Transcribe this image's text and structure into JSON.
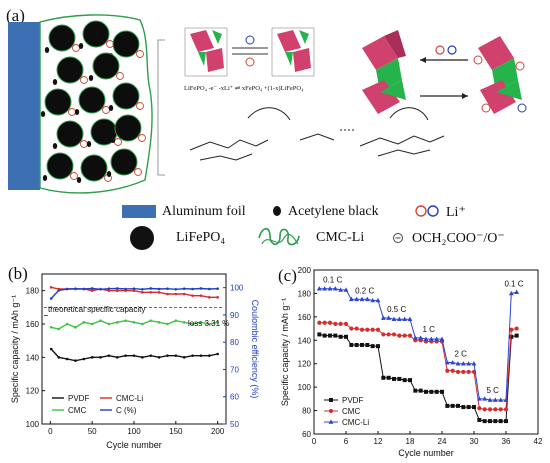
{
  "panel_a": {
    "label": "(a)",
    "equation": "LiFePO₄ -e⁻ -xLi⁺ ⇌ xFePO₄ +(1-x)LiFePO₄",
    "legend": {
      "aluminum_foil": "Aluminum foil",
      "acetylene_black": "Acetylene black",
      "li_ion": "Li⁺",
      "lifepo4": "LiFePO₄",
      "cmc_li": "CMC-Li",
      "carboxylate": "OCH₂COO⁻/O⁻"
    },
    "colors": {
      "foil": "#3d6fb3",
      "binder": "#2e9e4a",
      "octahedron": "#d0416e",
      "green_block": "#27b34b",
      "ion": "#d4453a"
    }
  },
  "panel_b": {
    "label": "(b)",
    "annotation_theory": "theoretical specific capacity",
    "annotation_loss": "loss 3.31 %"
  },
  "panel_c": {
    "label": "(c)",
    "rate_labels": [
      "0.1 C",
      "0.2 C",
      "0.5 C",
      "1 C",
      "2 C",
      "5 C",
      "0.1 C"
    ]
  },
  "chart_data": [
    {
      "type": "line",
      "xlabel": "Cycle number",
      "ylabel": "Specific capacity / mAh g⁻¹",
      "y2label": "Coulombic efficiency (%)",
      "xlim": [
        -10,
        210
      ],
      "ylim": [
        100,
        190
      ],
      "y2lim": [
        50,
        105
      ],
      "xticks": [
        0,
        50,
        100,
        150,
        200
      ],
      "yticks": [
        100,
        120,
        140,
        160,
        180
      ],
      "y2ticks": [
        50,
        60,
        70,
        80,
        90,
        100
      ],
      "theoretical_capacity": 170,
      "legend_placement": "bottom-left",
      "series": [
        {
          "name": "PVDF",
          "axis": "left",
          "color": "#111111",
          "x": [
            1,
            10,
            20,
            30,
            40,
            50,
            60,
            70,
            80,
            90,
            100,
            110,
            120,
            130,
            140,
            150,
            160,
            170,
            180,
            190,
            200
          ],
          "values": [
            145,
            140,
            139,
            138,
            139,
            140,
            140,
            141,
            140,
            141,
            141,
            140,
            141,
            140,
            141,
            141,
            140,
            141,
            141,
            141,
            142
          ]
        },
        {
          "name": "CMC-Li",
          "axis": "left",
          "color": "#d92b2b",
          "x": [
            1,
            10,
            20,
            30,
            40,
            50,
            60,
            70,
            80,
            90,
            100,
            110,
            120,
            130,
            140,
            150,
            160,
            170,
            180,
            190,
            200
          ],
          "values": [
            182,
            181,
            181,
            181,
            181,
            180,
            181,
            180,
            180,
            180,
            180,
            179,
            179,
            179,
            178,
            178,
            178,
            177,
            177,
            176,
            176
          ]
        },
        {
          "name": "CMC",
          "axis": "left",
          "color": "#3ec43e",
          "x": [
            1,
            10,
            20,
            30,
            40,
            50,
            60,
            70,
            80,
            90,
            100,
            110,
            120,
            130,
            140,
            150,
            160,
            170,
            180,
            190,
            200
          ],
          "values": [
            158,
            157,
            160,
            158,
            161,
            160,
            162,
            160,
            161,
            162,
            161,
            160,
            162,
            161,
            160,
            162,
            161,
            160,
            161,
            160,
            161
          ]
        },
        {
          "name": "C (%)",
          "axis": "right",
          "color": "#1f3fbf",
          "x": [
            1,
            10,
            20,
            30,
            40,
            50,
            60,
            70,
            80,
            90,
            100,
            110,
            120,
            130,
            140,
            150,
            160,
            170,
            180,
            190,
            200
          ],
          "values": [
            96,
            99,
            99.5,
            99.6,
            99.5,
            99.7,
            99.4,
            99.6,
            99.7,
            99.5,
            99.6,
            99.4,
            99.7,
            99.5,
            99.6,
            99.4,
            99.6,
            99.5,
            99.7,
            99.5,
            99.6
          ]
        }
      ]
    },
    {
      "type": "line",
      "xlabel": "Cycle number",
      "ylabel": "Specific capacity / mAh g⁻¹",
      "xlim": [
        0,
        42
      ],
      "ylim": [
        60,
        200
      ],
      "xticks": [
        0,
        6,
        12,
        18,
        24,
        30,
        36,
        42
      ],
      "yticks": [
        60,
        80,
        100,
        120,
        140,
        160,
        180,
        200
      ],
      "legend_placement": "bottom-left",
      "series": [
        {
          "name": "PVDF",
          "color": "#111111",
          "marker": "square",
          "x": [
            1,
            2,
            3,
            4,
            5,
            6,
            7,
            8,
            9,
            10,
            11,
            12,
            13,
            14,
            15,
            16,
            17,
            18,
            19,
            20,
            21,
            22,
            23,
            24,
            25,
            26,
            27,
            28,
            29,
            30,
            31,
            32,
            33,
            34,
            35,
            36,
            37,
            38
          ],
          "values": [
            145,
            144,
            144,
            144,
            143,
            143,
            136,
            136,
            136,
            136,
            135,
            135,
            108,
            108,
            107,
            107,
            106,
            106,
            97,
            97,
            96,
            96,
            96,
            96,
            84,
            84,
            84,
            83,
            83,
            83,
            72,
            71,
            71,
            71,
            71,
            71,
            143,
            144
          ]
        },
        {
          "name": "CMC",
          "color": "#d92b2b",
          "marker": "circle",
          "x": [
            1,
            2,
            3,
            4,
            5,
            6,
            7,
            8,
            9,
            10,
            11,
            12,
            13,
            14,
            15,
            16,
            17,
            18,
            19,
            20,
            21,
            22,
            23,
            24,
            25,
            26,
            27,
            28,
            29,
            30,
            31,
            32,
            33,
            34,
            35,
            36,
            37,
            38
          ],
          "values": [
            155,
            155,
            155,
            154,
            154,
            154,
            150,
            150,
            149,
            149,
            149,
            149,
            145,
            145,
            145,
            144,
            144,
            144,
            140,
            140,
            139,
            139,
            139,
            139,
            114,
            114,
            113,
            113,
            113,
            113,
            82,
            81,
            81,
            81,
            81,
            81,
            149,
            150
          ]
        },
        {
          "name": "CMC-Li",
          "color": "#2d46d1",
          "marker": "triangle",
          "x": [
            1,
            2,
            3,
            4,
            5,
            6,
            7,
            8,
            9,
            10,
            11,
            12,
            13,
            14,
            15,
            16,
            17,
            18,
            19,
            20,
            21,
            22,
            23,
            24,
            25,
            26,
            27,
            28,
            29,
            30,
            31,
            32,
            33,
            34,
            35,
            36,
            37,
            38
          ],
          "values": [
            184,
            184,
            184,
            184,
            183,
            183,
            175,
            175,
            175,
            175,
            174,
            174,
            159,
            159,
            158,
            158,
            158,
            158,
            142,
            142,
            141,
            141,
            141,
            141,
            121,
            121,
            120,
            120,
            120,
            120,
            90,
            90,
            89,
            89,
            89,
            89,
            180,
            181
          ]
        }
      ]
    }
  ]
}
